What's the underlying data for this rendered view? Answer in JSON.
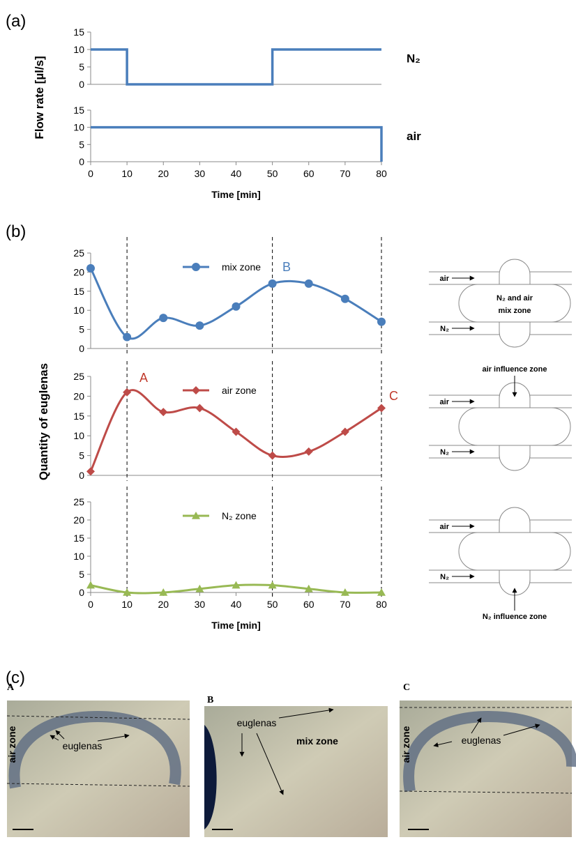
{
  "panels": {
    "a": "(a)",
    "b": "(b)",
    "c": "(c)"
  },
  "chart_data": [
    {
      "type": "line",
      "x": [
        0,
        10,
        10,
        50,
        50,
        80
      ],
      "series": [
        {
          "color": "#4a7ebb",
          "values": [
            10,
            10,
            0,
            0,
            10,
            10
          ]
        }
      ],
      "xlim": [
        0,
        80
      ],
      "ylim": [
        0,
        15
      ],
      "yticks": [
        0,
        5,
        10,
        15
      ],
      "side_label": "N₂",
      "ylabel": "Flow rate [µl/s]"
    },
    {
      "type": "line",
      "x": [
        0,
        80,
        80
      ],
      "series": [
        {
          "color": "#4a7ebb",
          "values": [
            10,
            10,
            0
          ]
        }
      ],
      "xlim": [
        0,
        80
      ],
      "ylim": [
        0,
        15
      ],
      "yticks": [
        0,
        5,
        10,
        15
      ],
      "xticks": [
        0,
        10,
        20,
        30,
        40,
        50,
        60,
        70,
        80
      ],
      "side_label": "air",
      "xlabel": "Time [min]"
    },
    {
      "type": "line",
      "smooth": true,
      "x": [
        0,
        10,
        20,
        30,
        40,
        50,
        60,
        70,
        80
      ],
      "series": [
        {
          "name": "mix zone",
          "color": "#4a7ebb",
          "marker": "circle",
          "values": [
            21,
            3,
            8,
            6,
            11,
            17,
            17,
            13,
            7
          ]
        }
      ],
      "xlim": [
        0,
        80
      ],
      "ylim": [
        0,
        25
      ],
      "yticks": [
        0,
        5,
        10,
        15,
        20,
        25
      ],
      "vlines": [
        10,
        50,
        80
      ],
      "annotations": [
        {
          "text": "B",
          "color": "#4a7ebb"
        }
      ]
    },
    {
      "type": "line",
      "smooth": true,
      "x": [
        0,
        10,
        20,
        30,
        40,
        50,
        60,
        70,
        80
      ],
      "series": [
        {
          "name": "air zone",
          "color": "#be4b48",
          "marker": "diamond",
          "values": [
            1,
            21,
            16,
            17,
            11,
            5,
            6,
            11,
            17
          ]
        }
      ],
      "xlim": [
        0,
        80
      ],
      "ylim": [
        0,
        25
      ],
      "yticks": [
        0,
        5,
        10,
        15,
        20,
        25
      ],
      "vlines": [
        10,
        50,
        80
      ],
      "ylabel": "Quantity of euglenas",
      "annotations": [
        {
          "text": "A",
          "color": "#c0392b"
        },
        {
          "text": "C",
          "color": "#c0392b"
        }
      ]
    },
    {
      "type": "line",
      "smooth": true,
      "x": [
        0,
        10,
        20,
        30,
        40,
        50,
        60,
        70,
        80
      ],
      "series": [
        {
          "name": "N₂  zone",
          "color": "#98b954",
          "marker": "triangle",
          "values": [
            2,
            0,
            0,
            1,
            2,
            2,
            1,
            0,
            0
          ]
        }
      ],
      "xlim": [
        0,
        80
      ],
      "ylim": [
        0,
        25
      ],
      "yticks": [
        0,
        5,
        10,
        15,
        20,
        25
      ],
      "xticks": [
        0,
        10,
        20,
        30,
        40,
        50,
        60,
        70,
        80
      ],
      "vlines": [
        10,
        50,
        80
      ],
      "xlabel": "Time [min]"
    }
  ],
  "diagrams": [
    {
      "air": "air",
      "zone": [
        "N₂ and air",
        "mix zone"
      ],
      "n2": "N₂"
    },
    {
      "air": "air",
      "zone": "air influence zone",
      "n2": "N₂"
    },
    {
      "air": "air",
      "zone": "N₂ influence zone",
      "n2": "N₂"
    }
  ],
  "photos": [
    {
      "title": "A",
      "zone": "air zone",
      "euglenas": "euglenas"
    },
    {
      "title": "B",
      "zone": "mix zone",
      "euglenas": "euglenas"
    },
    {
      "title": "C",
      "zone": "air zone",
      "euglenas": "euglenas"
    }
  ]
}
